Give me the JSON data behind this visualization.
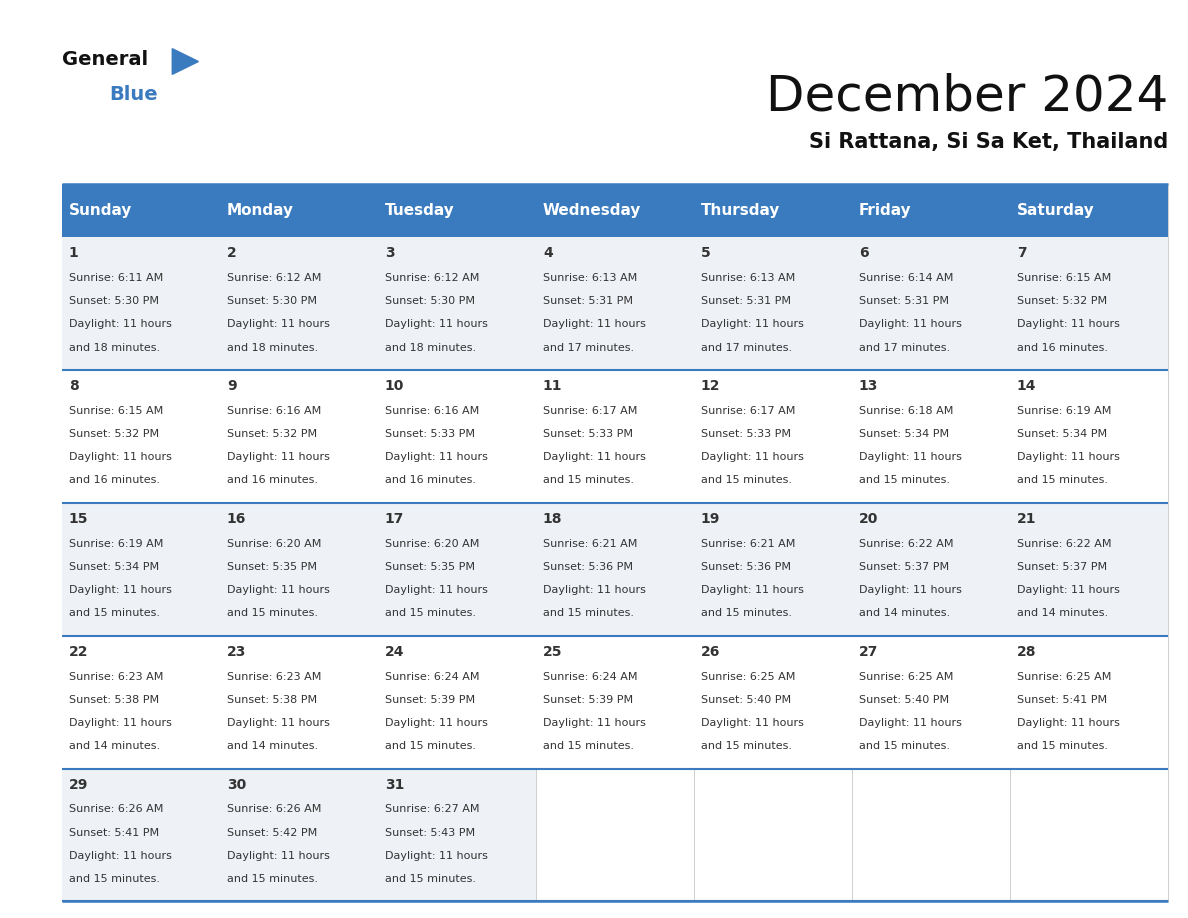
{
  "title": "December 2024",
  "subtitle": "Si Rattana, Si Sa Ket, Thailand",
  "header_color": "#3a7bbf",
  "header_text_color": "#ffffff",
  "cell_bg_light": "#eef2f7",
  "cell_bg_white": "#ffffff",
  "day_names": [
    "Sunday",
    "Monday",
    "Tuesday",
    "Wednesday",
    "Thursday",
    "Friday",
    "Saturday"
  ],
  "days": [
    {
      "day": 1,
      "col": 0,
      "row": 0,
      "sunrise": "6:11 AM",
      "sunset": "5:30 PM",
      "daylight_hours": 11,
      "daylight_minutes": 18
    },
    {
      "day": 2,
      "col": 1,
      "row": 0,
      "sunrise": "6:12 AM",
      "sunset": "5:30 PM",
      "daylight_hours": 11,
      "daylight_minutes": 18
    },
    {
      "day": 3,
      "col": 2,
      "row": 0,
      "sunrise": "6:12 AM",
      "sunset": "5:30 PM",
      "daylight_hours": 11,
      "daylight_minutes": 18
    },
    {
      "day": 4,
      "col": 3,
      "row": 0,
      "sunrise": "6:13 AM",
      "sunset": "5:31 PM",
      "daylight_hours": 11,
      "daylight_minutes": 17
    },
    {
      "day": 5,
      "col": 4,
      "row": 0,
      "sunrise": "6:13 AM",
      "sunset": "5:31 PM",
      "daylight_hours": 11,
      "daylight_minutes": 17
    },
    {
      "day": 6,
      "col": 5,
      "row": 0,
      "sunrise": "6:14 AM",
      "sunset": "5:31 PM",
      "daylight_hours": 11,
      "daylight_minutes": 17
    },
    {
      "day": 7,
      "col": 6,
      "row": 0,
      "sunrise": "6:15 AM",
      "sunset": "5:32 PM",
      "daylight_hours": 11,
      "daylight_minutes": 16
    },
    {
      "day": 8,
      "col": 0,
      "row": 1,
      "sunrise": "6:15 AM",
      "sunset": "5:32 PM",
      "daylight_hours": 11,
      "daylight_minutes": 16
    },
    {
      "day": 9,
      "col": 1,
      "row": 1,
      "sunrise": "6:16 AM",
      "sunset": "5:32 PM",
      "daylight_hours": 11,
      "daylight_minutes": 16
    },
    {
      "day": 10,
      "col": 2,
      "row": 1,
      "sunrise": "6:16 AM",
      "sunset": "5:33 PM",
      "daylight_hours": 11,
      "daylight_minutes": 16
    },
    {
      "day": 11,
      "col": 3,
      "row": 1,
      "sunrise": "6:17 AM",
      "sunset": "5:33 PM",
      "daylight_hours": 11,
      "daylight_minutes": 15
    },
    {
      "day": 12,
      "col": 4,
      "row": 1,
      "sunrise": "6:17 AM",
      "sunset": "5:33 PM",
      "daylight_hours": 11,
      "daylight_minutes": 15
    },
    {
      "day": 13,
      "col": 5,
      "row": 1,
      "sunrise": "6:18 AM",
      "sunset": "5:34 PM",
      "daylight_hours": 11,
      "daylight_minutes": 15
    },
    {
      "day": 14,
      "col": 6,
      "row": 1,
      "sunrise": "6:19 AM",
      "sunset": "5:34 PM",
      "daylight_hours": 11,
      "daylight_minutes": 15
    },
    {
      "day": 15,
      "col": 0,
      "row": 2,
      "sunrise": "6:19 AM",
      "sunset": "5:34 PM",
      "daylight_hours": 11,
      "daylight_minutes": 15
    },
    {
      "day": 16,
      "col": 1,
      "row": 2,
      "sunrise": "6:20 AM",
      "sunset": "5:35 PM",
      "daylight_hours": 11,
      "daylight_minutes": 15
    },
    {
      "day": 17,
      "col": 2,
      "row": 2,
      "sunrise": "6:20 AM",
      "sunset": "5:35 PM",
      "daylight_hours": 11,
      "daylight_minutes": 15
    },
    {
      "day": 18,
      "col": 3,
      "row": 2,
      "sunrise": "6:21 AM",
      "sunset": "5:36 PM",
      "daylight_hours": 11,
      "daylight_minutes": 15
    },
    {
      "day": 19,
      "col": 4,
      "row": 2,
      "sunrise": "6:21 AM",
      "sunset": "5:36 PM",
      "daylight_hours": 11,
      "daylight_minutes": 15
    },
    {
      "day": 20,
      "col": 5,
      "row": 2,
      "sunrise": "6:22 AM",
      "sunset": "5:37 PM",
      "daylight_hours": 11,
      "daylight_minutes": 14
    },
    {
      "day": 21,
      "col": 6,
      "row": 2,
      "sunrise": "6:22 AM",
      "sunset": "5:37 PM",
      "daylight_hours": 11,
      "daylight_minutes": 14
    },
    {
      "day": 22,
      "col": 0,
      "row": 3,
      "sunrise": "6:23 AM",
      "sunset": "5:38 PM",
      "daylight_hours": 11,
      "daylight_minutes": 14
    },
    {
      "day": 23,
      "col": 1,
      "row": 3,
      "sunrise": "6:23 AM",
      "sunset": "5:38 PM",
      "daylight_hours": 11,
      "daylight_minutes": 14
    },
    {
      "day": 24,
      "col": 2,
      "row": 3,
      "sunrise": "6:24 AM",
      "sunset": "5:39 PM",
      "daylight_hours": 11,
      "daylight_minutes": 15
    },
    {
      "day": 25,
      "col": 3,
      "row": 3,
      "sunrise": "6:24 AM",
      "sunset": "5:39 PM",
      "daylight_hours": 11,
      "daylight_minutes": 15
    },
    {
      "day": 26,
      "col": 4,
      "row": 3,
      "sunrise": "6:25 AM",
      "sunset": "5:40 PM",
      "daylight_hours": 11,
      "daylight_minutes": 15
    },
    {
      "day": 27,
      "col": 5,
      "row": 3,
      "sunrise": "6:25 AM",
      "sunset": "5:40 PM",
      "daylight_hours": 11,
      "daylight_minutes": 15
    },
    {
      "day": 28,
      "col": 6,
      "row": 3,
      "sunrise": "6:25 AM",
      "sunset": "5:41 PM",
      "daylight_hours": 11,
      "daylight_minutes": 15
    },
    {
      "day": 29,
      "col": 0,
      "row": 4,
      "sunrise": "6:26 AM",
      "sunset": "5:41 PM",
      "daylight_hours": 11,
      "daylight_minutes": 15
    },
    {
      "day": 30,
      "col": 1,
      "row": 4,
      "sunrise": "6:26 AM",
      "sunset": "5:42 PM",
      "daylight_hours": 11,
      "daylight_minutes": 15
    },
    {
      "day": 31,
      "col": 2,
      "row": 4,
      "sunrise": "6:27 AM",
      "sunset": "5:43 PM",
      "daylight_hours": 11,
      "daylight_minutes": 15
    }
  ],
  "num_rows": 5,
  "num_cols": 7,
  "logo_text_general": "General",
  "logo_text_blue": "Blue",
  "logo_triangle_color": "#3a7bbf",
  "cell_text_color": "#333333",
  "cell_number_color": "#333333",
  "divider_color": "#3a7bbf",
  "bg_color": "#ffffff",
  "title_fontsize": 36,
  "subtitle_fontsize": 15,
  "day_name_fontsize": 11,
  "day_num_fontsize": 10,
  "cell_text_fontsize": 8
}
